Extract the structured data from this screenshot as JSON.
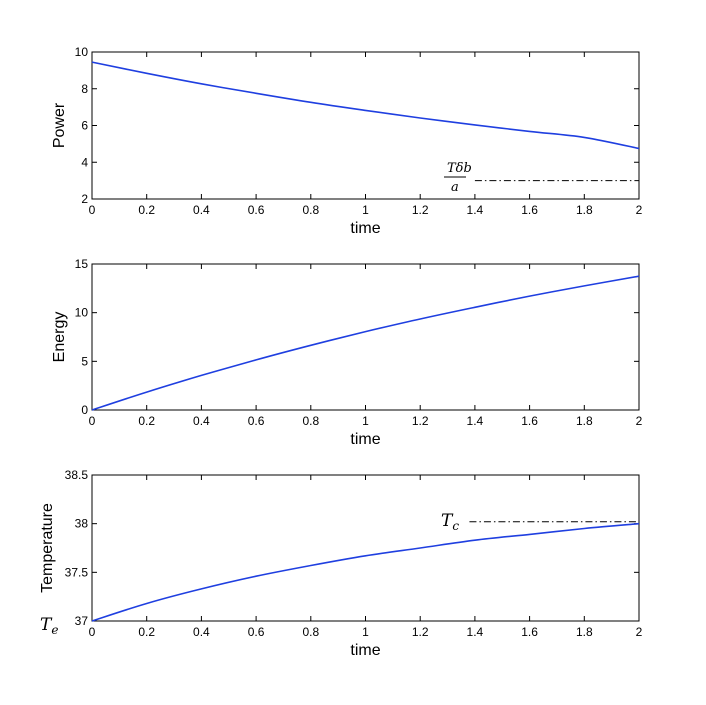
{
  "chart_data": [
    {
      "type": "line",
      "xlabel": "time",
      "ylabel": "Power",
      "xlim": [
        0,
        2
      ],
      "ylim": [
        2,
        10
      ],
      "xticks": [
        "0",
        "0.2",
        "0.4",
        "0.6",
        "0.8",
        "1",
        "1.2",
        "1.4",
        "1.6",
        "1.8",
        "2"
      ],
      "yticks": [
        "2",
        "4",
        "6",
        "8",
        "10"
      ],
      "grid": false,
      "series": [
        {
          "color": "#1f3fe0",
          "x": [
            0,
            0.2,
            0.4,
            0.6,
            0.8,
            1.0,
            1.2,
            1.4,
            1.6,
            1.8,
            2.0
          ],
          "y": [
            9.45,
            8.84,
            8.27,
            7.75,
            7.26,
            6.82,
            6.41,
            6.03,
            5.68,
            5.35,
            4.75
          ]
        }
      ],
      "reference_line": {
        "y": 3.0,
        "x_start": 1.4,
        "x_end": 2.0,
        "style": "dash-dot",
        "label_num": "Tδb",
        "label_den": "a"
      }
    },
    {
      "type": "line",
      "xlabel": "time",
      "ylabel": "Energy",
      "xlim": [
        0,
        2
      ],
      "ylim": [
        0,
        15
      ],
      "xticks": [
        "0",
        "0.2",
        "0.4",
        "0.6",
        "0.8",
        "1",
        "1.2",
        "1.4",
        "1.6",
        "1.8",
        "2"
      ],
      "yticks": [
        "0",
        "5",
        "10",
        "15"
      ],
      "grid": false,
      "series": [
        {
          "color": "#1f3fe0",
          "x": [
            0,
            0.2,
            0.4,
            0.6,
            0.8,
            1.0,
            1.2,
            1.4,
            1.6,
            1.8,
            2.0
          ],
          "y": [
            0,
            1.84,
            3.55,
            5.15,
            6.65,
            8.05,
            9.35,
            10.55,
            11.7,
            12.75,
            13.75
          ]
        }
      ]
    },
    {
      "type": "line",
      "xlabel": "time",
      "ylabel": "Temperature",
      "xlim": [
        0,
        2
      ],
      "ylim": [
        37,
        38.5
      ],
      "xticks": [
        "0",
        "0.2",
        "0.4",
        "0.6",
        "0.8",
        "1",
        "1.2",
        "1.4",
        "1.6",
        "1.8",
        "2"
      ],
      "yticks": [
        "37",
        "37.5",
        "38",
        "38.5"
      ],
      "grid": false,
      "series": [
        {
          "color": "#1f3fe0",
          "x": [
            0,
            0.2,
            0.4,
            0.6,
            0.8,
            1.0,
            1.2,
            1.4,
            1.6,
            1.8,
            2.0
          ],
          "y": [
            37.0,
            37.18,
            37.33,
            37.46,
            37.57,
            37.67,
            37.75,
            37.83,
            37.89,
            37.95,
            38.0
          ]
        }
      ],
      "reference_line": {
        "y": 38.02,
        "x_start": 1.38,
        "x_end": 2.0,
        "style": "dash-dot",
        "label": "Tc"
      },
      "corner_label": "Te"
    }
  ]
}
